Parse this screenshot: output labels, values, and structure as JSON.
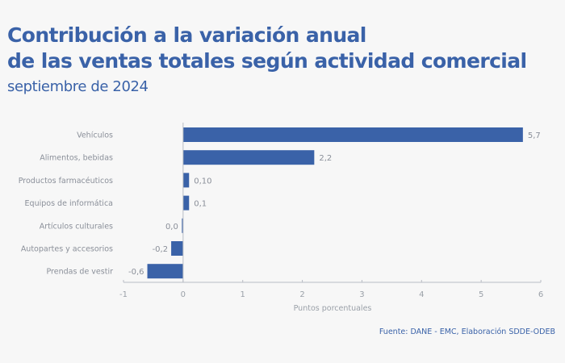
{
  "title_line1": "Contribución a la variación anual",
  "title_line2": "de las ventas totales según actividad comercial",
  "subtitle": "septiembre de 2024",
  "source": "Fuente: DANE - EMC, Elaboración SDDE-ODEB",
  "colors": {
    "bar": "#3a62a8",
    "title": "#3a62a8",
    "text": "#8a8f99",
    "axis": "#b8bcc4"
  },
  "chart_data": {
    "type": "bar",
    "orientation": "horizontal",
    "title": "Contribución a la variación anual de las ventas totales según actividad comercial",
    "subtitle": "septiembre de 2024",
    "categories": [
      "Vehículos",
      "Alimentos, bebidas",
      "Productos farmacéuticos",
      "Equipos de informática",
      "Artículos culturales",
      "Autopartes y accesorios",
      "Prendas de vestir"
    ],
    "values": [
      5.7,
      2.2,
      0.1,
      0.1,
      -0.02,
      -0.2,
      -0.6
    ],
    "value_labels": [
      "5,7",
      "2,2",
      "0,10",
      "0,1",
      "0,0",
      "-0,2",
      "-0,6"
    ],
    "xlabel": "Puntos porcentuales",
    "ylabel": "",
    "xlim": [
      -1,
      6
    ],
    "xticks": [
      -1,
      0,
      1,
      2,
      3,
      4,
      5,
      6
    ],
    "xtick_labels": [
      "-1",
      "0",
      "1",
      "2",
      "3",
      "4",
      "5",
      "6"
    ],
    "grid": false,
    "legend": "none"
  }
}
